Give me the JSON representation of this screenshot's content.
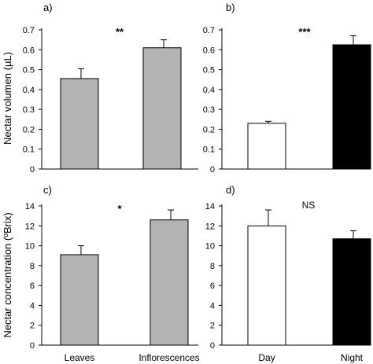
{
  "colors": {
    "gray_bar": "#b3b3b3",
    "white_bar": "#ffffff",
    "black_bar": "#000000",
    "axis": "#000000"
  },
  "y_titles": {
    "top": "Nectar volumen (µL)",
    "bottom": "Nectar concentration (ºBrix)"
  },
  "chart_data": [
    {
      "panel": "a)",
      "type": "bar",
      "categories": [
        "",
        ""
      ],
      "values": [
        0.455,
        0.61
      ],
      "errors": [
        0.05,
        0.04
      ],
      "fill": [
        "gray_bar",
        "gray_bar"
      ],
      "ylim": [
        0,
        0.7
      ],
      "yticks": [
        "0",
        "0.1",
        "0.2",
        "0.3",
        "0.4",
        "0.5",
        "0.6",
        "0.7"
      ],
      "significance": "**"
    },
    {
      "panel": "b)",
      "type": "bar",
      "categories": [
        "",
        ""
      ],
      "values": [
        0.23,
        0.625
      ],
      "errors": [
        0.01,
        0.045
      ],
      "fill": [
        "white_bar",
        "black_bar"
      ],
      "ylim": [
        0,
        0.7
      ],
      "yticks": [
        "0",
        "0.1",
        "0.2",
        "0.3",
        "0.4",
        "0.5",
        "0.6",
        "0.7"
      ],
      "significance": "***"
    },
    {
      "panel": "c)",
      "type": "bar",
      "categories": [
        "Leaves",
        "Inflorescences"
      ],
      "values": [
        9.1,
        12.6
      ],
      "errors": [
        0.9,
        1.0
      ],
      "fill": [
        "gray_bar",
        "gray_bar"
      ],
      "ylim": [
        0,
        14
      ],
      "yticks": [
        "0",
        "2",
        "4",
        "6",
        "8",
        "10",
        "12",
        "14"
      ],
      "significance": "*"
    },
    {
      "panel": "d)",
      "type": "bar",
      "categories": [
        "Day",
        "Night"
      ],
      "values": [
        12.0,
        10.7
      ],
      "errors": [
        1.6,
        0.8
      ],
      "fill": [
        "white_bar",
        "black_bar"
      ],
      "ylim": [
        0,
        14
      ],
      "yticks": [
        "0",
        "2",
        "4",
        "6",
        "8",
        "10",
        "12",
        "14"
      ],
      "significance": "NS"
    }
  ]
}
